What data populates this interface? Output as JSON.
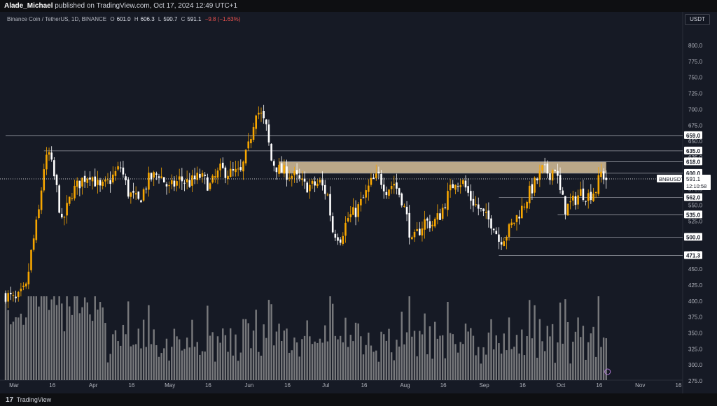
{
  "header": {
    "author": "Alade_Michael",
    "published_text": " published on TradingView.com, Oct 17, 2024 12:49 UTC+1"
  },
  "legend": {
    "symbol_name": "Binance Coin / TetherUS, 1D, BINANCE",
    "open_label": "O",
    "open": "601.0",
    "high_label": "H",
    "high": "606.3",
    "low_label": "L",
    "low": "590.7",
    "close_label": "C",
    "close": "591.1",
    "change": "−9.8 (−1.63%)"
  },
  "price_axis": {
    "unit": "USDT"
  },
  "footer": {
    "logo_text": "17",
    "brand": "TradingView"
  },
  "colors": {
    "background": "#161a25",
    "up_candle": "#f7a600",
    "down_candle": "#ffffff",
    "zone": "#d7c19a",
    "level_line": "#9598a1",
    "volume": "#9a9a9a"
  },
  "chart_data": {
    "type": "candlestick",
    "symbol": "BNBUSDT",
    "ylim": [
      262,
      812
    ],
    "y_ticks": [
      "275.0",
      "300.0",
      "325.0",
      "350.0",
      "375.0",
      "400.0",
      "425.0",
      "450.0",
      "475.0",
      "500.0",
      "525.0",
      "550.0",
      "575.0",
      "600.0",
      "625.0",
      "650.0",
      "675.0",
      "700.0",
      "725.0",
      "750.0",
      "775.0",
      "800.0"
    ],
    "x_ticks": [
      "Mar",
      "16",
      "Apr",
      "16",
      "May",
      "16",
      "Jun",
      "16",
      "Jul",
      "16",
      "Aug",
      "16",
      "Sep",
      "16",
      "Oct",
      "16",
      "Nov",
      "16"
    ],
    "x_tick_days": [
      0,
      15,
      31,
      46,
      61,
      76,
      92,
      107,
      122,
      137,
      153,
      168,
      184,
      199,
      214,
      229,
      245,
      260
    ],
    "last_price": {
      "label": "BNBUSDT",
      "value": "591.1",
      "countdown": "12:10:58",
      "price": 591.1
    },
    "levels": [
      {
        "label": "659.0",
        "price": 659,
        "start_day": 0
      },
      {
        "label": "635.0",
        "price": 635,
        "start_day": 15
      },
      {
        "label": "618.0",
        "price": 618,
        "start_day": 107
      },
      {
        "label": "600.0",
        "price": 600,
        "start_day": 107
      },
      {
        "label": "562.0",
        "price": 562,
        "start_day": 193
      },
      {
        "label": "535.0",
        "price": 535,
        "start_day": 216
      },
      {
        "label": "500.0",
        "price": 500,
        "start_day": 195
      },
      {
        "label": "471.3",
        "price": 471.3,
        "start_day": 193
      }
    ],
    "zone": {
      "from_price": 600,
      "to_price": 618,
      "start_day": 107,
      "end_day": 235
    },
    "x_start_date": "2024-03-01",
    "close_anchors": [
      {
        "day": 0,
        "close": 410
      },
      {
        "day": 4,
        "close": 400
      },
      {
        "day": 8,
        "close": 420
      },
      {
        "day": 10,
        "close": 475
      },
      {
        "day": 13,
        "close": 540
      },
      {
        "day": 15,
        "close": 610
      },
      {
        "day": 17,
        "close": 630
      },
      {
        "day": 20,
        "close": 575
      },
      {
        "day": 22,
        "close": 520
      },
      {
        "day": 26,
        "close": 570
      },
      {
        "day": 30,
        "close": 590
      },
      {
        "day": 33,
        "close": 600
      },
      {
        "day": 37,
        "close": 575
      },
      {
        "day": 40,
        "close": 585
      },
      {
        "day": 45,
        "close": 610
      },
      {
        "day": 48,
        "close": 570
      },
      {
        "day": 52,
        "close": 555
      },
      {
        "day": 56,
        "close": 590
      },
      {
        "day": 60,
        "close": 600
      },
      {
        "day": 64,
        "close": 575
      },
      {
        "day": 68,
        "close": 590
      },
      {
        "day": 72,
        "close": 585
      },
      {
        "day": 76,
        "close": 595
      },
      {
        "day": 80,
        "close": 580
      },
      {
        "day": 84,
        "close": 605
      },
      {
        "day": 88,
        "close": 600
      },
      {
        "day": 92,
        "close": 600
      },
      {
        "day": 95,
        "close": 640
      },
      {
        "day": 98,
        "close": 700
      },
      {
        "day": 100,
        "close": 690
      },
      {
        "day": 102,
        "close": 670
      },
      {
        "day": 104,
        "close": 620
      },
      {
        "day": 107,
        "close": 605
      },
      {
        "day": 110,
        "close": 600
      },
      {
        "day": 113,
        "close": 595
      },
      {
        "day": 117,
        "close": 580
      },
      {
        "day": 120,
        "close": 580
      },
      {
        "day": 123,
        "close": 585
      },
      {
        "day": 126,
        "close": 565
      },
      {
        "day": 128,
        "close": 510
      },
      {
        "day": 131,
        "close": 500
      },
      {
        "day": 134,
        "close": 530
      },
      {
        "day": 137,
        "close": 540
      },
      {
        "day": 140,
        "close": 560
      },
      {
        "day": 143,
        "close": 585
      },
      {
        "day": 146,
        "close": 595
      },
      {
        "day": 149,
        "close": 575
      },
      {
        "day": 152,
        "close": 585
      },
      {
        "day": 155,
        "close": 560
      },
      {
        "day": 157,
        "close": 530
      },
      {
        "day": 159,
        "close": 490
      },
      {
        "day": 161,
        "close": 505
      },
      {
        "day": 164,
        "close": 525
      },
      {
        "day": 167,
        "close": 520
      },
      {
        "day": 170,
        "close": 535
      },
      {
        "day": 173,
        "close": 565
      },
      {
        "day": 176,
        "close": 590
      },
      {
        "day": 179,
        "close": 585
      },
      {
        "day": 182,
        "close": 560
      },
      {
        "day": 185,
        "close": 545
      },
      {
        "day": 188,
        "close": 530
      },
      {
        "day": 191,
        "close": 520
      },
      {
        "day": 193,
        "close": 495
      },
      {
        "day": 196,
        "close": 505
      },
      {
        "day": 199,
        "close": 525
      },
      {
        "day": 202,
        "close": 545
      },
      {
        "day": 205,
        "close": 570
      },
      {
        "day": 208,
        "close": 590
      },
      {
        "day": 210,
        "close": 605
      },
      {
        "day": 213,
        "close": 600
      },
      {
        "day": 215,
        "close": 610
      },
      {
        "day": 217,
        "close": 570
      },
      {
        "day": 219,
        "close": 545
      },
      {
        "day": 222,
        "close": 555
      },
      {
        "day": 225,
        "close": 570
      },
      {
        "day": 228,
        "close": 565
      },
      {
        "day": 231,
        "close": 575
      },
      {
        "day": 233,
        "close": 600
      },
      {
        "day": 235,
        "close": 591.1
      }
    ]
  }
}
